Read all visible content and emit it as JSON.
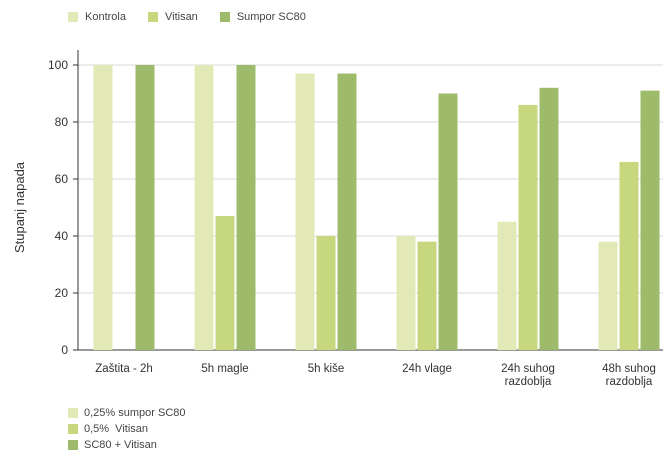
{
  "chart_data": {
    "type": "bar",
    "categories": [
      [
        "Zaštita - 2h"
      ],
      [
        "5h magle"
      ],
      [
        "5h kiše"
      ],
      [
        "24h vlage"
      ],
      [
        "24h suhog",
        "razdoblja"
      ],
      [
        "48h suhog",
        "razdoblja"
      ]
    ],
    "series": [
      {
        "name": "Kontrola",
        "color": "#e2e9b6",
        "values": [
          100,
          100,
          97,
          40,
          45,
          38
        ]
      },
      {
        "name": "Vitisan",
        "color": "#c6d77e",
        "values": [
          null,
          47,
          40,
          38,
          86,
          66
        ]
      },
      {
        "name": "Sumpor SC80",
        "color": "#9dbb6a",
        "values": [
          100,
          100,
          97,
          90,
          92,
          91
        ]
      }
    ],
    "ylabel": "Stupanj napada",
    "ylim": [
      0,
      100
    ],
    "yticks": [
      0,
      20,
      40,
      60,
      80,
      100
    ],
    "grid": true,
    "legend": "top-left"
  },
  "legend_top": [
    {
      "label": "Kontrola",
      "color": "#e2e9b6"
    },
    {
      "label": "Vitisan",
      "color": "#c6d77e"
    },
    {
      "label": "Sumpor SC80",
      "color": "#9dbb6a"
    }
  ],
  "legend_bottom": [
    {
      "label": "0,25% sumpor SC80",
      "color": "#e2e9b6"
    },
    {
      "label": "0,5%  Vitisan",
      "color": "#c6d77e"
    },
    {
      "label": "SC80 + Vitisan",
      "color": "#9dbb6a"
    }
  ]
}
